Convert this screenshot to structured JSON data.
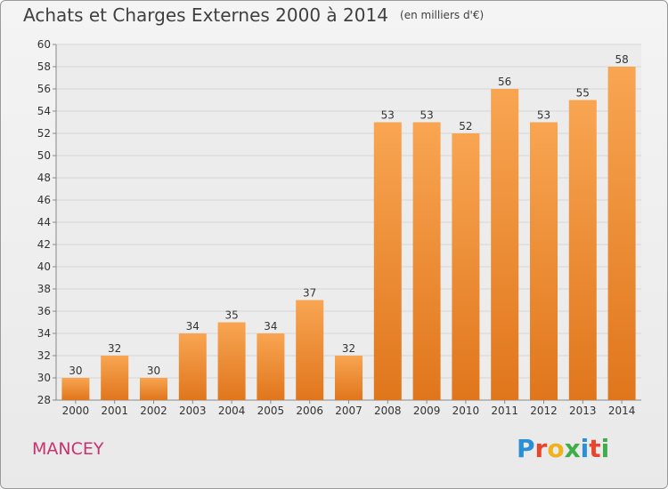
{
  "title": "Achats et Charges Externes 2000 à 2014",
  "subtitle": "(en milliers d'€)",
  "commune": "MANCEY",
  "logo_text": "Proxiti",
  "colors": {
    "bar_top": "#f8a552",
    "bar_bottom": "#e0761c",
    "grid": "#d6d6d6",
    "axis_text": "#333333",
    "commune": "#c8326e"
  },
  "chart_data": {
    "type": "bar",
    "categories": [
      "2000",
      "2001",
      "2002",
      "2003",
      "2004",
      "2005",
      "2006",
      "2007",
      "2008",
      "2009",
      "2010",
      "2011",
      "2012",
      "2013",
      "2014"
    ],
    "values": [
      30,
      32,
      30,
      34,
      35,
      34,
      37,
      32,
      53,
      53,
      52,
      56,
      53,
      55,
      58
    ],
    "ylim": [
      28,
      60
    ],
    "yticks": [
      28,
      30,
      32,
      34,
      36,
      38,
      40,
      42,
      44,
      46,
      48,
      50,
      52,
      54,
      56,
      58,
      60
    ],
    "grid": true,
    "data_labels": true
  }
}
